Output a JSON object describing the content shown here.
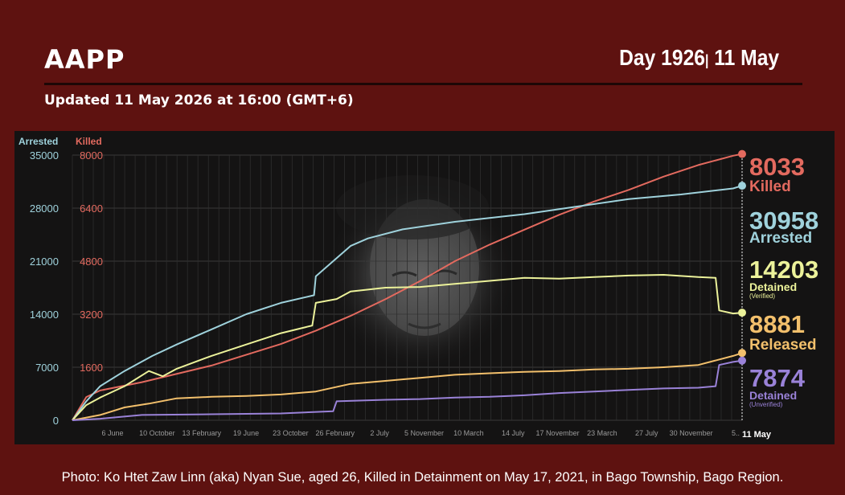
{
  "header": {
    "org": "AAPP",
    "day_label": "Day 1926",
    "separator": "|",
    "date": "11 May",
    "updated": "Updated 11 May 2026 at 16:00 (GMT+6)"
  },
  "caption": "Photo: Ko Htet Zaw Linn (aka) Nyan Sue, aged 26, Killed in Detainment on May 17, 2021, in Bago Township, Bago Region.",
  "colors": {
    "background": "#5e1210",
    "panel": "#141313",
    "killed": "#e36a5f",
    "arrested": "#9fd2dc",
    "detained": "#ecf29a",
    "released": "#f3c06c",
    "unverified": "#9a82d8"
  },
  "chart_data": {
    "type": "line",
    "left_axis": {
      "title": "Arrested",
      "ticks": [
        0,
        7000,
        14000,
        21000,
        28000,
        35000
      ],
      "range": [
        0,
        35000
      ]
    },
    "right_axis": {
      "title": "Killed",
      "ticks": [
        0,
        1600,
        3200,
        4800,
        6400,
        8000
      ],
      "range": [
        0,
        8000
      ]
    },
    "x_tick_labels": [
      "6 June",
      "10 October",
      "13 February",
      "19 June",
      "23 October",
      "26 February",
      "2 July",
      "5 November",
      "10 March",
      "14 July",
      "17 November",
      "23 March",
      "27 July",
      "30 November",
      "5.."
    ],
    "x_end_label": "11 May",
    "x_range_days": [
      0,
      1926
    ],
    "series": [
      {
        "key": "killed",
        "axis": "right",
        "value_label": "8033",
        "name_label": "Killed",
        "sub_label": "",
        "points": [
          [
            0,
            0
          ],
          [
            40,
            700
          ],
          [
            80,
            900
          ],
          [
            200,
            1150
          ],
          [
            400,
            1650
          ],
          [
            600,
            2300
          ],
          [
            700,
            2700
          ],
          [
            800,
            3150
          ],
          [
            900,
            3650
          ],
          [
            1000,
            4200
          ],
          [
            1100,
            4800
          ],
          [
            1200,
            5300
          ],
          [
            1300,
            5750
          ],
          [
            1400,
            6200
          ],
          [
            1500,
            6600
          ],
          [
            1600,
            6950
          ],
          [
            1700,
            7350
          ],
          [
            1800,
            7700
          ],
          [
            1900,
            7980
          ],
          [
            1926,
            8033
          ]
        ]
      },
      {
        "key": "arrested",
        "axis": "left",
        "value_label": "30958",
        "name_label": "Arrested",
        "sub_label": "",
        "points": [
          [
            0,
            0
          ],
          [
            40,
            2500
          ],
          [
            80,
            4500
          ],
          [
            150,
            6500
          ],
          [
            230,
            8500
          ],
          [
            300,
            10000
          ],
          [
            400,
            12000
          ],
          [
            500,
            14000
          ],
          [
            600,
            15500
          ],
          [
            695,
            16500
          ],
          [
            700,
            19000
          ],
          [
            750,
            21000
          ],
          [
            800,
            23000
          ],
          [
            850,
            24000
          ],
          [
            950,
            25200
          ],
          [
            1100,
            26200
          ],
          [
            1300,
            27200
          ],
          [
            1450,
            28200
          ],
          [
            1600,
            29200
          ],
          [
            1750,
            29800
          ],
          [
            1900,
            30600
          ],
          [
            1926,
            30958
          ]
        ]
      },
      {
        "key": "detained",
        "axis": "left",
        "value_label": "14203",
        "name_label": "Detained",
        "sub_label": "(Verified)",
        "points": [
          [
            0,
            0
          ],
          [
            40,
            2000
          ],
          [
            80,
            3000
          ],
          [
            150,
            4500
          ],
          [
            220,
            6500
          ],
          [
            260,
            5800
          ],
          [
            300,
            6800
          ],
          [
            400,
            8500
          ],
          [
            500,
            10000
          ],
          [
            600,
            11500
          ],
          [
            690,
            12500
          ],
          [
            700,
            15500
          ],
          [
            760,
            16000
          ],
          [
            800,
            17000
          ],
          [
            900,
            17500
          ],
          [
            1000,
            17600
          ],
          [
            1100,
            18000
          ],
          [
            1200,
            18400
          ],
          [
            1300,
            18800
          ],
          [
            1400,
            18700
          ],
          [
            1500,
            18900
          ],
          [
            1600,
            19100
          ],
          [
            1700,
            19200
          ],
          [
            1800,
            18900
          ],
          [
            1850,
            18800
          ],
          [
            1860,
            14500
          ],
          [
            1900,
            14100
          ],
          [
            1926,
            14203
          ]
        ]
      },
      {
        "key": "released",
        "axis": "left",
        "value_label": "8881",
        "name_label": "Released",
        "sub_label": "",
        "points": [
          [
            0,
            0
          ],
          [
            80,
            700
          ],
          [
            150,
            1700
          ],
          [
            220,
            2200
          ],
          [
            300,
            2900
          ],
          [
            400,
            3100
          ],
          [
            500,
            3200
          ],
          [
            600,
            3400
          ],
          [
            700,
            3800
          ],
          [
            800,
            4800
          ],
          [
            900,
            5200
          ],
          [
            1000,
            5600
          ],
          [
            1100,
            6000
          ],
          [
            1200,
            6200
          ],
          [
            1300,
            6400
          ],
          [
            1400,
            6500
          ],
          [
            1500,
            6700
          ],
          [
            1600,
            6800
          ],
          [
            1700,
            7000
          ],
          [
            1800,
            7300
          ],
          [
            1900,
            8500
          ],
          [
            1926,
            8881
          ]
        ]
      },
      {
        "key": "unverified",
        "axis": "left",
        "value_label": "7874",
        "name_label": "Detained",
        "sub_label": "(Unverified)",
        "points": [
          [
            0,
            0
          ],
          [
            80,
            200
          ],
          [
            200,
            700
          ],
          [
            400,
            800
          ],
          [
            600,
            900
          ],
          [
            750,
            1200
          ],
          [
            760,
            2500
          ],
          [
            900,
            2700
          ],
          [
            1000,
            2800
          ],
          [
            1100,
            3000
          ],
          [
            1200,
            3100
          ],
          [
            1300,
            3300
          ],
          [
            1400,
            3600
          ],
          [
            1500,
            3800
          ],
          [
            1600,
            4000
          ],
          [
            1700,
            4200
          ],
          [
            1800,
            4300
          ],
          [
            1850,
            4500
          ],
          [
            1860,
            7300
          ],
          [
            1900,
            7700
          ],
          [
            1926,
            7874
          ]
        ]
      }
    ]
  }
}
